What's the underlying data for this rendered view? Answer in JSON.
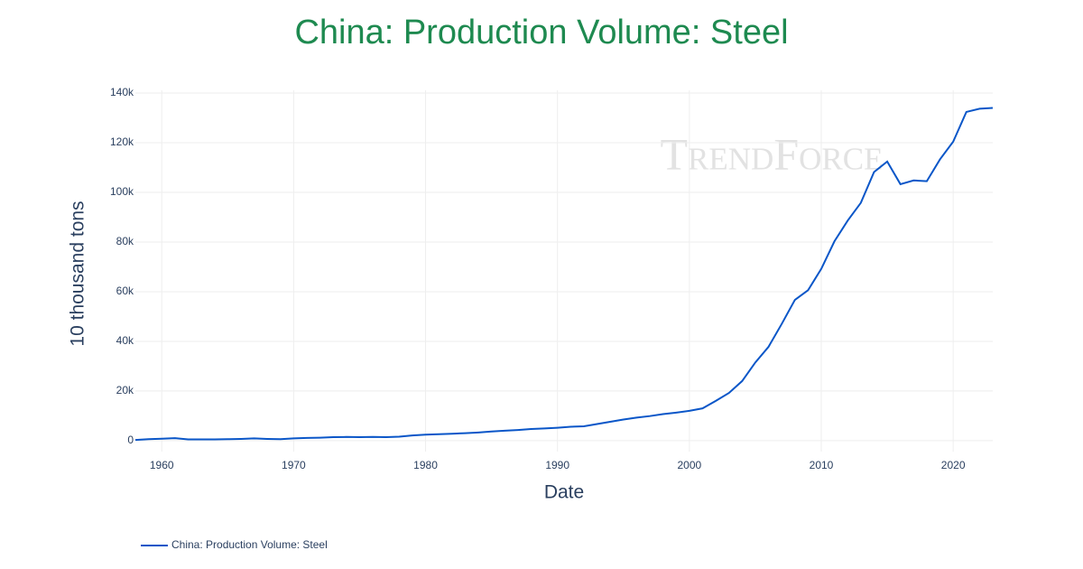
{
  "chart_data": {
    "type": "line",
    "title": "China: Production Volume: Steel",
    "watermark": "TrendForce",
    "x_label": "Date",
    "y_label": "10 thousand tons",
    "x": [
      1958,
      1959,
      1960,
      1961,
      1962,
      1963,
      1964,
      1965,
      1966,
      1967,
      1968,
      1969,
      1970,
      1971,
      1972,
      1973,
      1974,
      1975,
      1976,
      1977,
      1978,
      1979,
      1980,
      1981,
      1982,
      1983,
      1984,
      1985,
      1986,
      1987,
      1988,
      1989,
      1990,
      1991,
      1992,
      1993,
      1994,
      1995,
      1996,
      1997,
      1998,
      1999,
      2000,
      2001,
      2002,
      2003,
      2004,
      2005,
      2006,
      2007,
      2008,
      2009,
      2010,
      2011,
      2012,
      2013,
      2014,
      2015,
      2016,
      2017,
      2018,
      2019,
      2020,
      2021,
      2022,
      2023
    ],
    "series": [
      {
        "name": "China: Production Volume: Steel",
        "color": "#0a56c8",
        "values": [
          300,
          600,
          800,
          1000,
          500,
          500,
          500,
          600,
          700,
          900,
          700,
          600,
          900,
          1100,
          1200,
          1400,
          1500,
          1400,
          1500,
          1400,
          1600,
          2100,
          2400,
          2600,
          2800,
          3000,
          3300,
          3700,
          4000,
          4300,
          4700,
          4900,
          5200,
          5600,
          5800,
          6700,
          7600,
          8500,
          9300,
          9900,
          10700,
          11300,
          12000,
          13000,
          16000,
          19200,
          24000,
          31500,
          37800,
          47000,
          56700,
          60600,
          69200,
          80300,
          88600,
          95800,
          108200,
          112400,
          103300,
          104800,
          104500,
          113300,
          120400,
          132400,
          133700,
          134000
        ]
      }
    ],
    "xlim": [
      1958,
      2023
    ],
    "xticks": [
      1960,
      1970,
      1980,
      1990,
      2000,
      2010,
      2020
    ],
    "ylim": [
      -4400,
      141100
    ],
    "yticks": [
      0,
      {
        "value": 20000,
        "label": "20k"
      },
      {
        "value": 40000,
        "label": "40k"
      },
      {
        "value": 60000,
        "label": "60k"
      },
      {
        "value": 80000,
        "label": "80k"
      },
      {
        "value": 100000,
        "label": "100k"
      },
      {
        "value": 120000,
        "label": "120k"
      },
      {
        "value": 140000,
        "label": "140k"
      }
    ],
    "grid": true,
    "legend": "bottom-left"
  }
}
